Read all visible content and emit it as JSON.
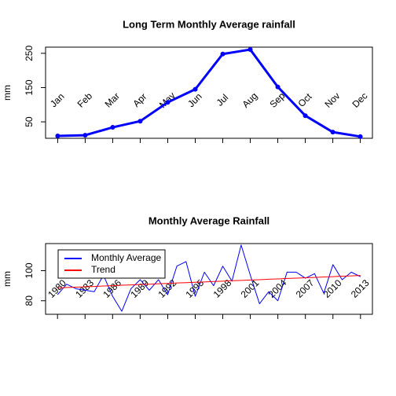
{
  "chart_data": [
    {
      "type": "line",
      "title": "Long Term Monthly Average rainfall",
      "ylabel": "mm",
      "categories": [
        "Jan",
        "Feb",
        "Mar",
        "Apr",
        "May",
        "Jun",
        "Jul",
        "Aug",
        "Sep",
        "Oct",
        "Nov",
        "Dec"
      ],
      "series": [
        {
          "name": "Monthly Average",
          "color": "#0000ff",
          "values": [
            9,
            11,
            34,
            52,
            107,
            145,
            248,
            261,
            152,
            68,
            20,
            7
          ]
        }
      ],
      "ylim": [
        2,
        268
      ],
      "yticks": [
        50,
        150,
        250
      ]
    },
    {
      "type": "line",
      "title": "Monthly Average Rainfall",
      "ylabel": "mm",
      "x": [
        1980,
        1981,
        1982,
        1983,
        1984,
        1985,
        1986,
        1987,
        1988,
        1989,
        1990,
        1991,
        1992,
        1993,
        1994,
        1995,
        1996,
        1997,
        1998,
        1999,
        2000,
        2001,
        2002,
        2003,
        2004,
        2005,
        2006,
        2007,
        2008,
        2009,
        2010,
        2011,
        2012,
        2013
      ],
      "series": [
        {
          "name": "Monthly Average",
          "color": "#0000ff",
          "values": [
            84,
            91,
            88,
            87,
            86,
            97,
            83,
            73,
            88,
            94,
            87,
            94,
            84,
            103,
            106,
            83,
            99,
            90,
            103,
            93,
            117,
            97,
            78,
            86,
            80,
            99,
            99,
            95,
            98,
            85,
            104,
            94,
            99,
            96
          ]
        },
        {
          "name": "Trend",
          "color": "#ff0000",
          "values": [
            88.5,
            88.8,
            89.0,
            89.3,
            89.5,
            89.8,
            90.0,
            90.3,
            90.5,
            90.8,
            91.0,
            91.3,
            91.5,
            91.8,
            92.0,
            92.3,
            92.5,
            92.8,
            93.0,
            93.3,
            93.5,
            93.8,
            94.0,
            94.3,
            94.5,
            94.8,
            95.0,
            95.3,
            95.5,
            95.8,
            96.0,
            96.3,
            96.5,
            96.8
          ]
        }
      ],
      "xlim": [
        1978.7,
        2014.3
      ],
      "xticks": [
        1980,
        1983,
        1986,
        1989,
        1992,
        1995,
        1998,
        2001,
        2004,
        2007,
        2010,
        2013
      ],
      "ylim": [
        71,
        118
      ],
      "yticks": [
        80,
        100
      ],
      "legend": "top-left"
    }
  ]
}
